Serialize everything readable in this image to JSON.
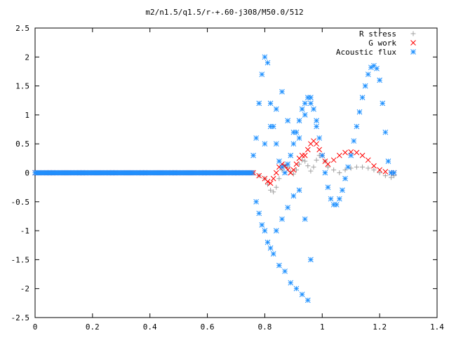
{
  "chart_data": {
    "type": "scatter",
    "title": "m2/n1.5/q1.5/r-+.60-j308/M50.0/512",
    "xlabel": "",
    "ylabel": "",
    "xlim": [
      0,
      1.4
    ],
    "ylim": [
      -2.5,
      2.5
    ],
    "x_ticks": [
      "0",
      "0.2",
      "0.4",
      "0.6",
      "0.8",
      "1",
      "1.2",
      "1.4"
    ],
    "y_ticks": [
      "-2.5",
      "-2",
      "-1.5",
      "-1",
      "-0.5",
      "0",
      "0.5",
      "1",
      "1.5",
      "2",
      "2.5"
    ],
    "grid": false,
    "legend_position": "top-right",
    "series": [
      {
        "name": "R stress",
        "marker": "plus",
        "color": "#a0a0a0",
        "x": [
          0.76,
          0.78,
          0.8,
          0.81,
          0.82,
          0.83,
          0.84,
          0.85,
          0.86,
          0.87,
          0.88,
          0.89,
          0.9,
          0.91,
          0.92,
          0.93,
          0.94,
          0.95,
          0.96,
          0.97,
          0.98,
          0.99,
          1.0,
          1.01,
          1.02,
          1.04,
          1.06,
          1.08,
          1.1,
          1.12,
          1.14,
          1.16,
          1.18,
          1.2,
          1.22,
          1.24,
          1.25
        ],
        "y": [
          0.0,
          -0.05,
          -0.1,
          -0.2,
          -0.3,
          -0.33,
          -0.25,
          -0.1,
          0.05,
          0.12,
          0.1,
          0.02,
          -0.02,
          0.05,
          0.15,
          0.22,
          0.2,
          0.12,
          0.03,
          0.1,
          0.22,
          0.3,
          0.3,
          0.2,
          0.1,
          0.05,
          0.0,
          0.05,
          0.08,
          0.1,
          0.1,
          0.08,
          0.05,
          0.0,
          -0.05,
          -0.08,
          -0.05
        ]
      },
      {
        "name": "G work",
        "marker": "cross",
        "color": "#ff0000",
        "x": [
          0.76,
          0.78,
          0.8,
          0.81,
          0.82,
          0.83,
          0.84,
          0.85,
          0.86,
          0.87,
          0.88,
          0.89,
          0.9,
          0.91,
          0.92,
          0.93,
          0.94,
          0.95,
          0.96,
          0.97,
          0.98,
          0.99,
          1.0,
          1.01,
          1.02,
          1.04,
          1.06,
          1.08,
          1.1,
          1.12,
          1.14,
          1.16,
          1.18,
          1.2,
          1.22,
          1.24,
          1.25
        ],
        "y": [
          0.0,
          -0.05,
          -0.1,
          -0.15,
          -0.18,
          -0.1,
          0.0,
          0.1,
          0.15,
          0.12,
          0.05,
          0.0,
          0.05,
          0.15,
          0.25,
          0.3,
          0.3,
          0.4,
          0.5,
          0.55,
          0.5,
          0.4,
          0.3,
          0.2,
          0.15,
          0.22,
          0.3,
          0.35,
          0.36,
          0.35,
          0.3,
          0.22,
          0.12,
          0.05,
          0.02,
          0.0,
          0.0
        ]
      },
      {
        "name": "Acoustic flux",
        "marker": "star",
        "color": "#1e90ff",
        "x": [
          0.76,
          0.77,
          0.78,
          0.79,
          0.8,
          0.81,
          0.82,
          0.83,
          0.84,
          0.85,
          0.86,
          0.87,
          0.88,
          0.89,
          0.9,
          0.91,
          0.92,
          0.93,
          0.94,
          0.95,
          0.96,
          0.97,
          0.98,
          0.99,
          1.0,
          1.01,
          1.02,
          1.03,
          1.04,
          1.05,
          1.06,
          1.07,
          1.08,
          1.09,
          1.1,
          1.11,
          1.12,
          1.13,
          1.14,
          1.15,
          1.16,
          1.17,
          1.18,
          1.19,
          1.2,
          1.21,
          1.22,
          1.23,
          1.24,
          1.25,
          0.77,
          0.79,
          0.81,
          0.83,
          0.85,
          0.87,
          0.89,
          0.91,
          0.93,
          0.95,
          0.78,
          0.8,
          0.82,
          0.84,
          0.86,
          0.88,
          0.9,
          0.92,
          0.94,
          0.96,
          0.8,
          0.82,
          0.84,
          0.86,
          0.88,
          0.9,
          0.92,
          0.94,
          0.96,
          0.98
        ],
        "y": [
          0.3,
          0.6,
          1.2,
          1.7,
          2.0,
          1.9,
          1.2,
          0.8,
          0.5,
          0.2,
          0.1,
          0.0,
          0.15,
          0.3,
          0.5,
          0.7,
          0.9,
          1.1,
          1.2,
          1.3,
          1.3,
          1.1,
          0.9,
          0.6,
          0.3,
          0.0,
          -0.25,
          -0.45,
          -0.55,
          -0.55,
          -0.45,
          -0.3,
          -0.1,
          0.1,
          0.3,
          0.55,
          0.8,
          1.05,
          1.3,
          1.5,
          1.7,
          1.82,
          1.85,
          1.8,
          1.6,
          1.2,
          0.7,
          0.2,
          0.0,
          0.0,
          -0.5,
          -0.9,
          -1.2,
          -1.4,
          -1.6,
          -1.7,
          -1.9,
          -2.0,
          -2.1,
          -2.2,
          -0.7,
          -1.0,
          -1.3,
          -1.0,
          -0.8,
          -0.6,
          -0.4,
          -0.3,
          -0.8,
          -1.5,
          0.5,
          0.8,
          1.1,
          1.4,
          0.9,
          0.7,
          0.6,
          1.0,
          1.2,
          0.8
        ]
      }
    ]
  }
}
